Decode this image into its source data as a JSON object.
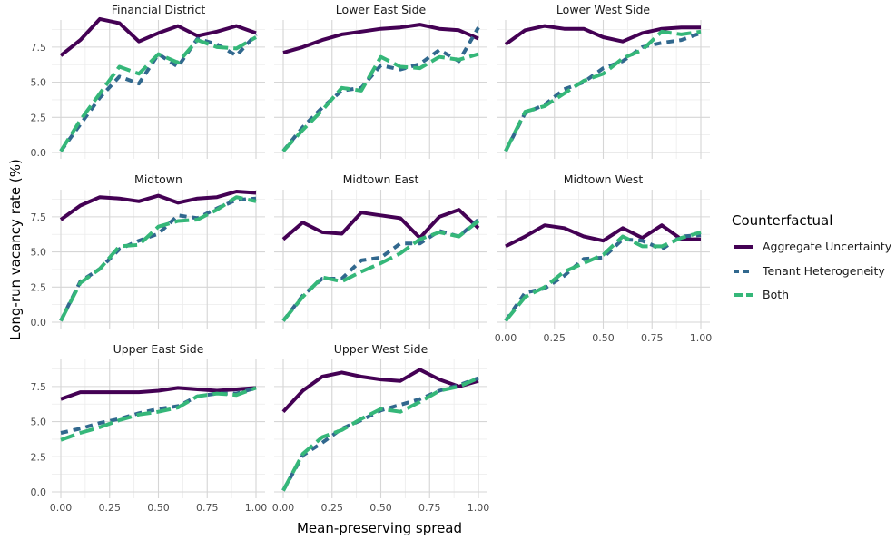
{
  "chart_data": {
    "type": "line",
    "xlabel": "Mean-preserving spread",
    "ylabel": "Long-run vacancy rate (%)",
    "xlim": [
      0,
      1
    ],
    "ylim": [
      0,
      9.3
    ],
    "x_ticks": [
      "0.00",
      "0.25",
      "0.50",
      "0.75",
      "1.00"
    ],
    "y_ticks": [
      "0.0",
      "2.5",
      "5.0",
      "7.5"
    ],
    "grid": true,
    "legend": {
      "title": "Counterfactual",
      "position": "right",
      "entries": [
        {
          "label": "Aggregate Uncertainty",
          "color": "#440154",
          "dash": "solid"
        },
        {
          "label": "Tenant Heterogeneity",
          "color": "#31688e",
          "dash": "dashed"
        },
        {
          "label": "Both",
          "color": "#35b779",
          "dash": "longdash"
        }
      ]
    },
    "x": [
      0.0,
      0.1,
      0.2,
      0.3,
      0.4,
      0.5,
      0.6,
      0.7,
      0.8,
      0.9,
      1.0
    ],
    "panels": [
      {
        "title": "Financial District",
        "series": [
          {
            "name": "Aggregate Uncertainty",
            "values": [
              6.9,
              8.0,
              9.5,
              9.2,
              7.9,
              8.5,
              9.0,
              8.3,
              8.6,
              9.0,
              8.5
            ]
          },
          {
            "name": "Tenant Heterogeneity",
            "values": [
              0.1,
              2.0,
              3.9,
              5.4,
              4.9,
              7.0,
              6.1,
              8.1,
              7.7,
              6.9,
              8.4
            ]
          },
          {
            "name": "Both",
            "values": [
              0.1,
              2.3,
              4.2,
              6.1,
              5.6,
              7.0,
              6.4,
              8.0,
              7.5,
              7.4,
              8.2
            ]
          }
        ]
      },
      {
        "title": "Lower East Side",
        "series": [
          {
            "name": "Aggregate Uncertainty",
            "values": [
              7.1,
              7.5,
              8.0,
              8.4,
              8.6,
              8.8,
              8.9,
              9.1,
              8.8,
              8.7,
              8.1
            ]
          },
          {
            "name": "Tenant Heterogeneity",
            "values": [
              0.1,
              1.8,
              3.2,
              4.4,
              4.6,
              6.2,
              5.9,
              6.3,
              7.3,
              6.5,
              8.9
            ]
          },
          {
            "name": "Both",
            "values": [
              0.1,
              1.6,
              3.0,
              4.6,
              4.4,
              6.8,
              6.1,
              6.0,
              6.8,
              6.6,
              7.0
            ]
          }
        ]
      },
      {
        "title": "Lower West Side",
        "series": [
          {
            "name": "Aggregate Uncertainty",
            "values": [
              7.7,
              8.7,
              9.0,
              8.8,
              8.8,
              8.2,
              7.9,
              8.5,
              8.8,
              8.9,
              8.9
            ]
          },
          {
            "name": "Tenant Heterogeneity",
            "values": [
              0.1,
              2.8,
              3.4,
              4.5,
              5.0,
              6.0,
              6.5,
              7.5,
              7.8,
              8.0,
              8.5
            ]
          },
          {
            "name": "Both",
            "values": [
              0.1,
              2.9,
              3.3,
              4.2,
              5.1,
              5.6,
              6.7,
              7.3,
              8.6,
              8.4,
              8.6
            ]
          }
        ]
      },
      {
        "title": "Midtown",
        "series": [
          {
            "name": "Aggregate Uncertainty",
            "values": [
              7.3,
              8.3,
              8.9,
              8.8,
              8.6,
              9.0,
              8.5,
              8.8,
              8.9,
              9.3,
              9.2
            ]
          },
          {
            "name": "Tenant Heterogeneity",
            "values": [
              0.1,
              2.9,
              3.8,
              5.2,
              5.8,
              6.3,
              7.6,
              7.4,
              8.1,
              8.7,
              8.8
            ]
          },
          {
            "name": "Both",
            "values": [
              0.1,
              2.8,
              3.8,
              5.4,
              5.5,
              6.8,
              7.2,
              7.3,
              8.0,
              8.9,
              8.6
            ]
          }
        ]
      },
      {
        "title": "Midtown East",
        "series": [
          {
            "name": "Aggregate Uncertainty",
            "values": [
              5.9,
              7.1,
              6.4,
              6.3,
              7.8,
              7.6,
              7.4,
              6.0,
              7.5,
              8.0,
              6.7
            ]
          },
          {
            "name": "Tenant Heterogeneity",
            "values": [
              0.1,
              1.9,
              3.1,
              3.1,
              4.4,
              4.6,
              5.6,
              5.6,
              6.5,
              6.1,
              7.3
            ]
          },
          {
            "name": "Both",
            "values": [
              0.1,
              1.8,
              3.2,
              2.9,
              3.6,
              4.2,
              4.9,
              5.9,
              6.4,
              6.1,
              7.2
            ]
          }
        ]
      },
      {
        "title": "Midtown West",
        "series": [
          {
            "name": "Aggregate Uncertainty",
            "values": [
              5.4,
              6.1,
              6.9,
              6.7,
              6.1,
              5.8,
              6.7,
              6.0,
              6.9,
              5.9,
              5.9
            ]
          },
          {
            "name": "Tenant Heterogeneity",
            "values": [
              0.1,
              2.1,
              2.4,
              3.3,
              4.5,
              4.6,
              5.9,
              5.8,
              5.2,
              6.1,
              6.2
            ]
          },
          {
            "name": "Both",
            "values": [
              0.1,
              1.8,
              2.5,
              3.6,
              4.2,
              4.8,
              6.1,
              5.4,
              5.4,
              6.0,
              6.4
            ]
          }
        ]
      },
      {
        "title": "Upper East Side",
        "series": [
          {
            "name": "Aggregate Uncertainty",
            "values": [
              6.6,
              7.1,
              7.1,
              7.1,
              7.1,
              7.2,
              7.4,
              7.3,
              7.2,
              7.3,
              7.4
            ]
          },
          {
            "name": "Tenant Heterogeneity",
            "values": [
              4.2,
              4.5,
              4.9,
              5.2,
              5.6,
              5.9,
              6.1,
              6.8,
              7.0,
              7.0,
              7.4
            ]
          },
          {
            "name": "Both",
            "values": [
              3.7,
              4.2,
              4.6,
              5.1,
              5.5,
              5.7,
              6.0,
              6.8,
              7.0,
              6.9,
              7.4
            ]
          }
        ]
      },
      {
        "title": "Upper West Side",
        "series": [
          {
            "name": "Aggregate Uncertainty",
            "values": [
              5.7,
              7.2,
              8.2,
              8.5,
              8.2,
              8.0,
              7.9,
              8.7,
              8.0,
              7.5,
              7.9
            ]
          },
          {
            "name": "Tenant Heterogeneity",
            "values": [
              0.1,
              2.6,
              3.5,
              4.5,
              5.1,
              5.8,
              6.2,
              6.6,
              7.2,
              7.6,
              8.1
            ]
          },
          {
            "name": "Both",
            "values": [
              0.1,
              2.7,
              3.9,
              4.4,
              5.2,
              5.9,
              5.7,
              6.4,
              7.2,
              7.5,
              8.1
            ]
          }
        ]
      }
    ]
  }
}
